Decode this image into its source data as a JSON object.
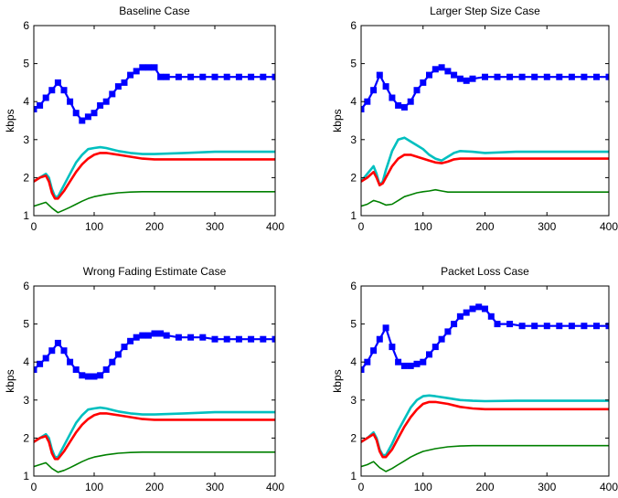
{
  "chart_data": [
    {
      "type": "line",
      "title": "Baseline Case",
      "xlabel": "",
      "ylabel": "kbps",
      "xlim": [
        0,
        400
      ],
      "ylim": [
        1,
        6
      ],
      "xticks": [
        0,
        100,
        200,
        300,
        400
      ],
      "yticks": [
        1,
        2,
        3,
        4,
        5,
        6
      ],
      "grid": false,
      "series": [
        {
          "color": "#0000ff",
          "marker": "square",
          "x": [
            0,
            10,
            20,
            30,
            40,
            50,
            60,
            70,
            80,
            90,
            100,
            110,
            120,
            130,
            140,
            150,
            160,
            170,
            180,
            190,
            200,
            210,
            220,
            240,
            260,
            280,
            300,
            320,
            340,
            360,
            380,
            400
          ],
          "y": [
            3.8,
            3.9,
            4.1,
            4.3,
            4.5,
            4.3,
            4.0,
            3.7,
            3.5,
            3.6,
            3.7,
            3.9,
            4.0,
            4.2,
            4.4,
            4.5,
            4.7,
            4.8,
            4.9,
            4.9,
            4.9,
            4.65,
            4.65,
            4.65,
            4.65,
            4.65,
            4.65,
            4.65,
            4.65,
            4.65,
            4.65,
            4.65
          ]
        },
        {
          "color": "#00bfbf",
          "x": [
            0,
            10,
            20,
            25,
            30,
            35,
            40,
            50,
            60,
            70,
            80,
            90,
            100,
            110,
            120,
            140,
            160,
            180,
            200,
            250,
            300,
            350,
            400
          ],
          "y": [
            1.9,
            2.0,
            2.1,
            2.0,
            1.7,
            1.5,
            1.5,
            1.8,
            2.1,
            2.4,
            2.6,
            2.75,
            2.78,
            2.8,
            2.78,
            2.7,
            2.65,
            2.62,
            2.62,
            2.65,
            2.68,
            2.68,
            2.68
          ]
        },
        {
          "color": "#ff0000",
          "x": [
            0,
            10,
            20,
            25,
            30,
            35,
            40,
            50,
            60,
            70,
            80,
            90,
            100,
            110,
            120,
            140,
            160,
            180,
            200,
            250,
            300,
            350,
            400
          ],
          "y": [
            1.9,
            2.0,
            2.05,
            1.9,
            1.6,
            1.45,
            1.45,
            1.65,
            1.9,
            2.15,
            2.35,
            2.5,
            2.6,
            2.65,
            2.65,
            2.6,
            2.55,
            2.5,
            2.48,
            2.48,
            2.48,
            2.48,
            2.48
          ]
        },
        {
          "color": "#008000",
          "x": [
            0,
            10,
            20,
            30,
            40,
            50,
            60,
            70,
            80,
            90,
            100,
            120,
            140,
            160,
            180,
            200,
            250,
            300,
            350,
            400
          ],
          "y": [
            1.25,
            1.3,
            1.35,
            1.2,
            1.08,
            1.15,
            1.22,
            1.3,
            1.38,
            1.45,
            1.5,
            1.56,
            1.6,
            1.62,
            1.63,
            1.63,
            1.63,
            1.63,
            1.63,
            1.63
          ]
        }
      ]
    },
    {
      "type": "line",
      "title": "Larger Step Size Case",
      "xlabel": "",
      "ylabel": "kbps",
      "xlim": [
        0,
        400
      ],
      "ylim": [
        1,
        6
      ],
      "xticks": [
        0,
        100,
        200,
        300,
        400
      ],
      "yticks": [
        1,
        2,
        3,
        4,
        5,
        6
      ],
      "grid": false,
      "series": [
        {
          "color": "#0000ff",
          "marker": "square",
          "x": [
            0,
            10,
            20,
            30,
            40,
            50,
            60,
            70,
            80,
            90,
            100,
            110,
            120,
            130,
            140,
            150,
            160,
            170,
            180,
            200,
            220,
            240,
            260,
            280,
            300,
            320,
            340,
            360,
            380,
            400
          ],
          "y": [
            3.8,
            4.0,
            4.3,
            4.7,
            4.4,
            4.1,
            3.9,
            3.85,
            4.0,
            4.3,
            4.5,
            4.7,
            4.85,
            4.9,
            4.8,
            4.7,
            4.6,
            4.55,
            4.6,
            4.65,
            4.65,
            4.65,
            4.65,
            4.65,
            4.65,
            4.65,
            4.65,
            4.65,
            4.65,
            4.65
          ]
        },
        {
          "color": "#00bfbf",
          "x": [
            0,
            10,
            20,
            25,
            30,
            35,
            40,
            50,
            60,
            70,
            80,
            90,
            100,
            110,
            120,
            130,
            140,
            150,
            160,
            180,
            200,
            250,
            300,
            350,
            400
          ],
          "y": [
            1.9,
            2.1,
            2.3,
            2.1,
            1.8,
            1.9,
            2.2,
            2.7,
            3.0,
            3.05,
            2.95,
            2.85,
            2.75,
            2.6,
            2.5,
            2.45,
            2.55,
            2.65,
            2.7,
            2.68,
            2.65,
            2.68,
            2.68,
            2.68,
            2.68
          ]
        },
        {
          "color": "#ff0000",
          "x": [
            0,
            10,
            20,
            25,
            30,
            35,
            40,
            50,
            60,
            70,
            80,
            90,
            100,
            110,
            120,
            130,
            140,
            150,
            160,
            180,
            200,
            250,
            300,
            350,
            400
          ],
          "y": [
            1.9,
            2.0,
            2.15,
            2.0,
            1.8,
            1.85,
            2.0,
            2.3,
            2.5,
            2.6,
            2.6,
            2.55,
            2.5,
            2.45,
            2.4,
            2.38,
            2.42,
            2.48,
            2.5,
            2.5,
            2.5,
            2.5,
            2.5,
            2.5,
            2.5
          ]
        },
        {
          "color": "#008000",
          "x": [
            0,
            10,
            20,
            30,
            40,
            50,
            60,
            70,
            80,
            90,
            100,
            110,
            120,
            130,
            140,
            160,
            180,
            200,
            250,
            300,
            350,
            400
          ],
          "y": [
            1.25,
            1.3,
            1.4,
            1.35,
            1.28,
            1.3,
            1.4,
            1.5,
            1.55,
            1.6,
            1.63,
            1.65,
            1.68,
            1.65,
            1.62,
            1.62,
            1.62,
            1.62,
            1.62,
            1.62,
            1.62,
            1.62
          ]
        }
      ]
    },
    {
      "type": "line",
      "title": "Wrong Fading Estimate Case",
      "xlabel": "",
      "ylabel": "kbps",
      "xlim": [
        0,
        400
      ],
      "ylim": [
        1,
        6
      ],
      "xticks": [
        0,
        100,
        200,
        300,
        400
      ],
      "yticks": [
        1,
        2,
        3,
        4,
        5,
        6
      ],
      "grid": false,
      "series": [
        {
          "color": "#0000ff",
          "marker": "square",
          "x": [
            0,
            10,
            20,
            30,
            40,
            50,
            60,
            70,
            80,
            90,
            100,
            110,
            120,
            130,
            140,
            150,
            160,
            170,
            180,
            190,
            200,
            210,
            220,
            240,
            260,
            280,
            300,
            320,
            340,
            360,
            380,
            400
          ],
          "y": [
            3.8,
            3.95,
            4.1,
            4.3,
            4.5,
            4.3,
            4.0,
            3.8,
            3.65,
            3.62,
            3.62,
            3.65,
            3.8,
            4.0,
            4.2,
            4.4,
            4.55,
            4.65,
            4.7,
            4.7,
            4.75,
            4.75,
            4.7,
            4.65,
            4.65,
            4.65,
            4.6,
            4.6,
            4.6,
            4.6,
            4.6,
            4.6
          ]
        },
        {
          "color": "#00bfbf",
          "x": [
            0,
            10,
            20,
            25,
            30,
            35,
            40,
            50,
            60,
            70,
            80,
            90,
            100,
            110,
            120,
            140,
            160,
            180,
            200,
            250,
            300,
            350,
            400
          ],
          "y": [
            1.9,
            2.0,
            2.1,
            2.0,
            1.7,
            1.5,
            1.5,
            1.8,
            2.1,
            2.4,
            2.6,
            2.75,
            2.78,
            2.8,
            2.78,
            2.7,
            2.65,
            2.62,
            2.62,
            2.65,
            2.68,
            2.68,
            2.68
          ]
        },
        {
          "color": "#ff0000",
          "x": [
            0,
            10,
            20,
            25,
            30,
            35,
            40,
            50,
            60,
            70,
            80,
            90,
            100,
            110,
            120,
            140,
            160,
            180,
            200,
            250,
            300,
            350,
            400
          ],
          "y": [
            1.9,
            2.0,
            2.05,
            1.9,
            1.6,
            1.45,
            1.45,
            1.65,
            1.9,
            2.15,
            2.35,
            2.5,
            2.6,
            2.65,
            2.65,
            2.6,
            2.55,
            2.5,
            2.48,
            2.48,
            2.48,
            2.48,
            2.48
          ]
        },
        {
          "color": "#008000",
          "x": [
            0,
            10,
            20,
            30,
            40,
            50,
            60,
            70,
            80,
            90,
            100,
            120,
            140,
            160,
            180,
            200,
            250,
            300,
            350,
            400
          ],
          "y": [
            1.25,
            1.3,
            1.35,
            1.2,
            1.1,
            1.15,
            1.22,
            1.3,
            1.38,
            1.45,
            1.5,
            1.56,
            1.6,
            1.62,
            1.63,
            1.63,
            1.63,
            1.63,
            1.63,
            1.63
          ]
        }
      ]
    },
    {
      "type": "line",
      "title": "Packet Loss Case",
      "xlabel": "",
      "ylabel": "kbps",
      "xlim": [
        0,
        400
      ],
      "ylim": [
        1,
        6
      ],
      "xticks": [
        0,
        100,
        200,
        300,
        400
      ],
      "yticks": [
        1,
        2,
        3,
        4,
        5,
        6
      ],
      "grid": false,
      "series": [
        {
          "color": "#0000ff",
          "marker": "square",
          "x": [
            0,
            10,
            20,
            30,
            40,
            50,
            60,
            70,
            80,
            90,
            100,
            110,
            120,
            130,
            140,
            150,
            160,
            170,
            180,
            190,
            200,
            210,
            220,
            240,
            260,
            280,
            300,
            320,
            340,
            360,
            380,
            400
          ],
          "y": [
            3.8,
            4.0,
            4.3,
            4.6,
            4.9,
            4.4,
            4.0,
            3.9,
            3.9,
            3.95,
            4.0,
            4.2,
            4.4,
            4.6,
            4.8,
            5.0,
            5.2,
            5.3,
            5.4,
            5.45,
            5.4,
            5.2,
            5.0,
            5.0,
            4.95,
            4.95,
            4.95,
            4.95,
            4.95,
            4.95,
            4.95,
            4.95
          ]
        },
        {
          "color": "#00bfbf",
          "x": [
            0,
            10,
            20,
            25,
            30,
            35,
            40,
            50,
            60,
            70,
            80,
            90,
            100,
            110,
            120,
            140,
            160,
            180,
            200,
            250,
            300,
            350,
            400
          ],
          "y": [
            1.9,
            2.0,
            2.15,
            2.0,
            1.7,
            1.55,
            1.55,
            1.85,
            2.2,
            2.5,
            2.8,
            3.0,
            3.1,
            3.12,
            3.1,
            3.05,
            3.0,
            2.98,
            2.97,
            2.98,
            2.98,
            2.98,
            2.98
          ]
        },
        {
          "color": "#ff0000",
          "x": [
            0,
            10,
            20,
            25,
            30,
            35,
            40,
            50,
            60,
            70,
            80,
            90,
            100,
            110,
            120,
            140,
            160,
            180,
            200,
            250,
            300,
            350,
            400
          ],
          "y": [
            1.9,
            2.0,
            2.1,
            1.95,
            1.65,
            1.5,
            1.5,
            1.7,
            2.0,
            2.3,
            2.55,
            2.75,
            2.9,
            2.95,
            2.95,
            2.9,
            2.82,
            2.78,
            2.76,
            2.76,
            2.76,
            2.76,
            2.76
          ]
        },
        {
          "color": "#008000",
          "x": [
            0,
            10,
            20,
            30,
            40,
            50,
            60,
            70,
            80,
            90,
            100,
            120,
            140,
            160,
            180,
            200,
            250,
            300,
            350,
            400
          ],
          "y": [
            1.25,
            1.3,
            1.38,
            1.22,
            1.12,
            1.2,
            1.3,
            1.4,
            1.5,
            1.58,
            1.65,
            1.72,
            1.77,
            1.79,
            1.8,
            1.8,
            1.8,
            1.8,
            1.8,
            1.8
          ]
        }
      ]
    }
  ]
}
